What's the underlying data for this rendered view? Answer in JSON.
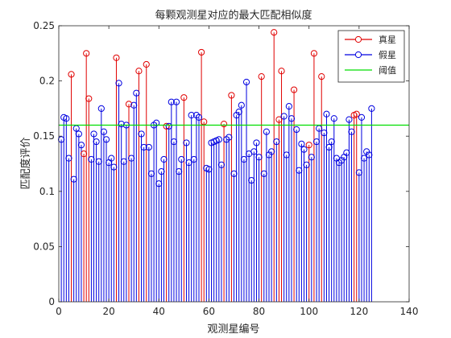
{
  "chart_data": {
    "type": "stem",
    "title": "每颗观测星对应的最大匹配相似度",
    "xlabel": "观测星编号",
    "ylabel": "匹配度评价",
    "xlim": [
      0,
      140
    ],
    "ylim": [
      0,
      0.25
    ],
    "xticks": [
      0,
      20,
      40,
      60,
      80,
      100,
      120,
      140
    ],
    "yticks": [
      0,
      0.05,
      0.1,
      0.15,
      0.2,
      0.25
    ],
    "threshold": 0.16,
    "legend": {
      "position": "top-right",
      "entries": [
        {
          "label": "真星",
          "color": "#e00000",
          "marker": "circle-stem"
        },
        {
          "label": "假星",
          "color": "#0000e0",
          "marker": "circle-stem"
        },
        {
          "label": "阈值",
          "color": "#00dd00",
          "marker": "line"
        }
      ]
    },
    "series": [
      {
        "name": "真星",
        "color": "#e00000",
        "points": [
          [
            5,
            0.206
          ],
          [
            10,
            0.134
          ],
          [
            11,
            0.225
          ],
          [
            12,
            0.184
          ],
          [
            23,
            0.221
          ],
          [
            28,
            0.179
          ],
          [
            32,
            0.209
          ],
          [
            35,
            0.215
          ],
          [
            43,
            0.159
          ],
          [
            50,
            0.185
          ],
          [
            57,
            0.226
          ],
          [
            58,
            0.163
          ],
          [
            66,
            0.161
          ],
          [
            69,
            0.187
          ],
          [
            81,
            0.204
          ],
          [
            86,
            0.244
          ],
          [
            88,
            0.165
          ],
          [
            89,
            0.209
          ],
          [
            94,
            0.192
          ],
          [
            100,
            0.142
          ],
          [
            102,
            0.225
          ],
          [
            105,
            0.204
          ],
          [
            118,
            0.169
          ],
          [
            119,
            0.17
          ]
        ]
      },
      {
        "name": "假星",
        "color": "#0000e0",
        "points": [
          [
            1,
            0.147
          ],
          [
            2,
            0.167
          ],
          [
            3,
            0.166
          ],
          [
            4,
            0.13
          ],
          [
            6,
            0.111
          ],
          [
            7,
            0.157
          ],
          [
            8,
            0.152
          ],
          [
            9,
            0.142
          ],
          [
            13,
            0.129
          ],
          [
            14,
            0.152
          ],
          [
            15,
            0.145
          ],
          [
            16,
            0.127
          ],
          [
            17,
            0.175
          ],
          [
            18,
            0.154
          ],
          [
            19,
            0.147
          ],
          [
            20,
            0.126
          ],
          [
            21,
            0.13
          ],
          [
            22,
            0.122
          ],
          [
            24,
            0.198
          ],
          [
            25,
            0.161
          ],
          [
            26,
            0.127
          ],
          [
            27,
            0.16
          ],
          [
            29,
            0.13
          ],
          [
            30,
            0.178
          ],
          [
            31,
            0.189
          ],
          [
            33,
            0.152
          ],
          [
            34,
            0.14
          ],
          [
            36,
            0.14
          ],
          [
            37,
            0.116
          ],
          [
            38,
            0.16
          ],
          [
            39,
            0.162
          ],
          [
            40,
            0.107
          ],
          [
            41,
            0.118
          ],
          [
            42,
            0.129
          ],
          [
            44,
            0.159
          ],
          [
            45,
            0.181
          ],
          [
            46,
            0.145
          ],
          [
            47,
            0.181
          ],
          [
            48,
            0.118
          ],
          [
            49,
            0.129
          ],
          [
            51,
            0.144
          ],
          [
            52,
            0.126
          ],
          [
            53,
            0.169
          ],
          [
            54,
            0.129
          ],
          [
            55,
            0.169
          ],
          [
            56,
            0.167
          ],
          [
            59,
            0.121
          ],
          [
            60,
            0.12
          ],
          [
            61,
            0.144
          ],
          [
            62,
            0.145
          ],
          [
            63,
            0.146
          ],
          [
            64,
            0.147
          ],
          [
            65,
            0.124
          ],
          [
            67,
            0.147
          ],
          [
            68,
            0.149
          ],
          [
            70,
            0.116
          ],
          [
            71,
            0.169
          ],
          [
            72,
            0.172
          ],
          [
            73,
            0.178
          ],
          [
            74,
            0.129
          ],
          [
            75,
            0.199
          ],
          [
            76,
            0.134
          ],
          [
            77,
            0.11
          ],
          [
            78,
            0.136
          ],
          [
            79,
            0.144
          ],
          [
            80,
            0.131
          ],
          [
            82,
            0.116
          ],
          [
            83,
            0.154
          ],
          [
            84,
            0.133
          ],
          [
            85,
            0.136
          ],
          [
            87,
            0.145
          ],
          [
            90,
            0.168
          ],
          [
            91,
            0.133
          ],
          [
            92,
            0.177
          ],
          [
            93,
            0.166
          ],
          [
            95,
            0.156
          ],
          [
            96,
            0.119
          ],
          [
            97,
            0.143
          ],
          [
            98,
            0.138
          ],
          [
            99,
            0.124
          ],
          [
            101,
            0.131
          ],
          [
            103,
            0.145
          ],
          [
            104,
            0.157
          ],
          [
            106,
            0.153
          ],
          [
            107,
            0.17
          ],
          [
            108,
            0.14
          ],
          [
            109,
            0.145
          ],
          [
            110,
            0.166
          ],
          [
            111,
            0.13
          ],
          [
            112,
            0.126
          ],
          [
            113,
            0.128
          ],
          [
            114,
            0.131
          ],
          [
            115,
            0.135
          ],
          [
            116,
            0.165
          ],
          [
            117,
            0.154
          ],
          [
            120,
            0.117
          ],
          [
            121,
            0.167
          ],
          [
            122,
            0.13
          ],
          [
            123,
            0.136
          ],
          [
            124,
            0.133
          ],
          [
            125,
            0.175
          ]
        ]
      }
    ]
  }
}
